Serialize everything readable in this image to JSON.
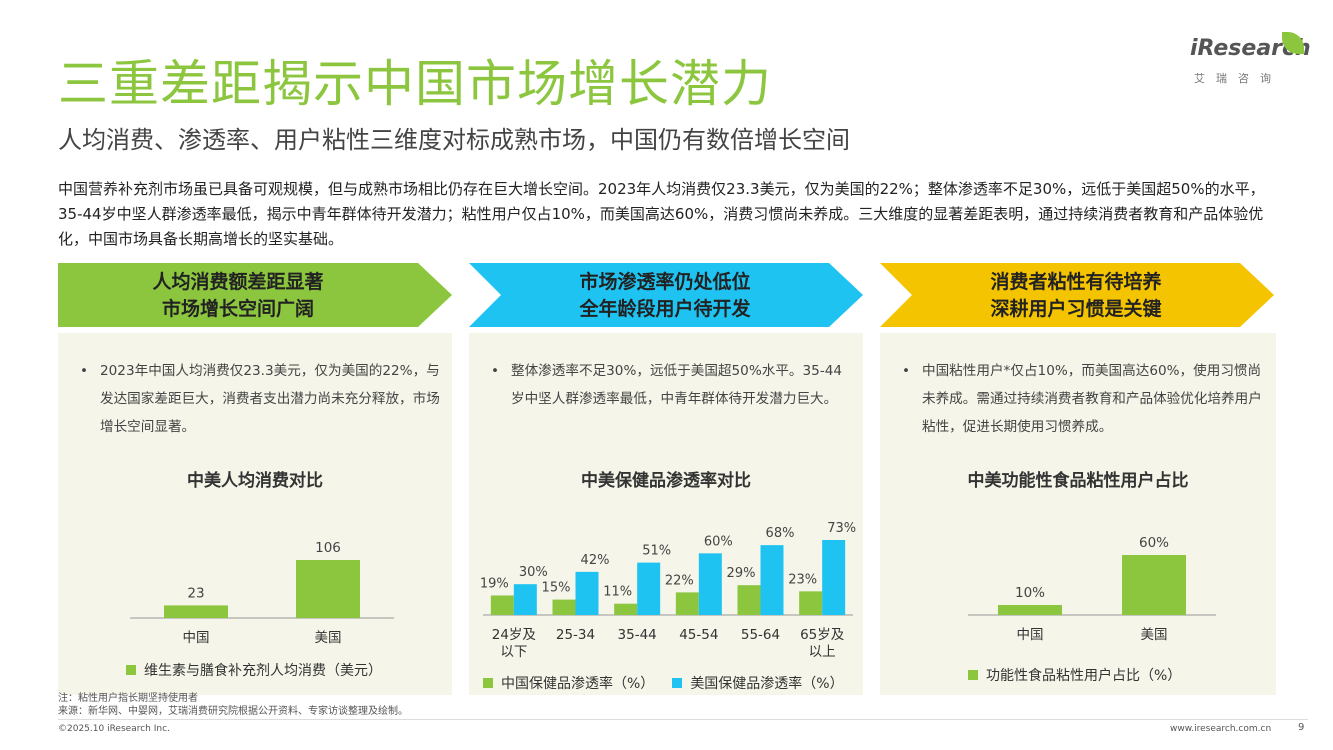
{
  "header": {
    "title": "三重差距揭示中国市场增长潜力",
    "subtitle": "人均消费、渗透率、用户粘性三维度对标成熟市场，中国仍有数倍增长空间",
    "intro": "中国营养补充剂市场虽已具备可观规模，但与成熟市场相比仍存在巨大增长空间。2023年人均消费仅23.3美元，仅为美国的22%；整体渗透率不足30%，远低于美国超50%的水平，35-44岁中坚人群渗透率最低，揭示中青年群体待开发潜力；粘性用户仅占10%，而美国高达60%，消费习惯尚未养成。三大维度的显著差距表明，通过持续消费者教育和产品体验优化，中国市场具备长期高增长的坚实基础。"
  },
  "logo": {
    "word": "iResearch",
    "cn": "艾瑞咨询"
  },
  "colors": {
    "green": "#8cc63e",
    "blue": "#1fc3f1",
    "yellow": "#f5c400"
  },
  "panels": [
    {
      "banner_line1": "人均消费额差距显著",
      "banner_line2": "市场增长空间广阔",
      "bullet": "2023年中国人均消费仅23.3美元，仅为美国的22%，与发达国家差距巨大，消费者支出潜力尚未充分释放，市场增长空间显著。",
      "chart_title": "中美人均消费对比",
      "legend": [
        "维生素与膳食补充剂人均消费（美元）"
      ]
    },
    {
      "banner_line1": "市场渗透率仍处低位",
      "banner_line2": "全年龄段用户待开发",
      "bullet": "整体渗透率不足30%，远低于美国超50%水平。35-44岁中坚人群渗透率最低，中青年群体待开发潜力巨大。",
      "chart_title": "中美保健品渗透率对比",
      "legend": [
        "中国保健品渗透率（%）",
        "美国保健品渗透率（%）"
      ]
    },
    {
      "banner_line1": "消费者粘性有待培养",
      "banner_line2": "深耕用户习惯是关键",
      "bullet": "中国粘性用户*仅占10%，而美国高达60%，使用习惯尚未养成。需通过持续消费者教育和产品体验优化培养用户粘性，促进长期使用习惯养成。",
      "chart_title": "中美功能性食品粘性用户占比",
      "legend": [
        "功能性食品粘性用户占比（%）"
      ]
    }
  ],
  "chart_data": [
    {
      "type": "bar",
      "title": "中美人均消费对比",
      "categories": [
        "中国",
        "美国"
      ],
      "series": [
        {
          "name": "维生素与膳食补充剂人均消费（美元）",
          "values": [
            23,
            106
          ],
          "labels": [
            "23",
            "106"
          ]
        }
      ],
      "ylim": [
        0,
        106
      ],
      "grid": false
    },
    {
      "type": "bar",
      "title": "中美保健品渗透率对比",
      "categories": [
        "24岁及\n以下",
        "25-34",
        "35-44",
        "45-54",
        "55-64",
        "65岁及\n以上"
      ],
      "series": [
        {
          "name": "中国保健品渗透率（%）",
          "values": [
            19,
            15,
            11,
            22,
            29,
            23
          ],
          "labels": [
            "19%",
            "15%",
            "11%",
            "22%",
            "29%",
            "23%"
          ]
        },
        {
          "name": "美国保健品渗透率（%）",
          "values": [
            30,
            42,
            51,
            60,
            68,
            73
          ],
          "labels": [
            "30%",
            "42%",
            "51%",
            "60%",
            "68%",
            "73%"
          ]
        }
      ],
      "ylim": [
        0,
        73
      ],
      "grid": false
    },
    {
      "type": "bar",
      "title": "中美功能性食品粘性用户占比",
      "categories": [
        "中国",
        "美国"
      ],
      "series": [
        {
          "name": "功能性食品粘性用户占比（%）",
          "values": [
            10,
            60
          ],
          "labels": [
            "10%",
            "60%"
          ]
        }
      ],
      "ylim": [
        0,
        60
      ],
      "grid": false
    }
  ],
  "footer": {
    "note": "注：粘性用户指长期坚持使用者",
    "source": "来源：新华网、中婴网，艾瑞消费研究院根据公开资料、专家访谈整理及绘制。",
    "copyright": "©2025.10 iResearch Inc.",
    "website": "www.iresearch.com.cn",
    "page": "9"
  }
}
